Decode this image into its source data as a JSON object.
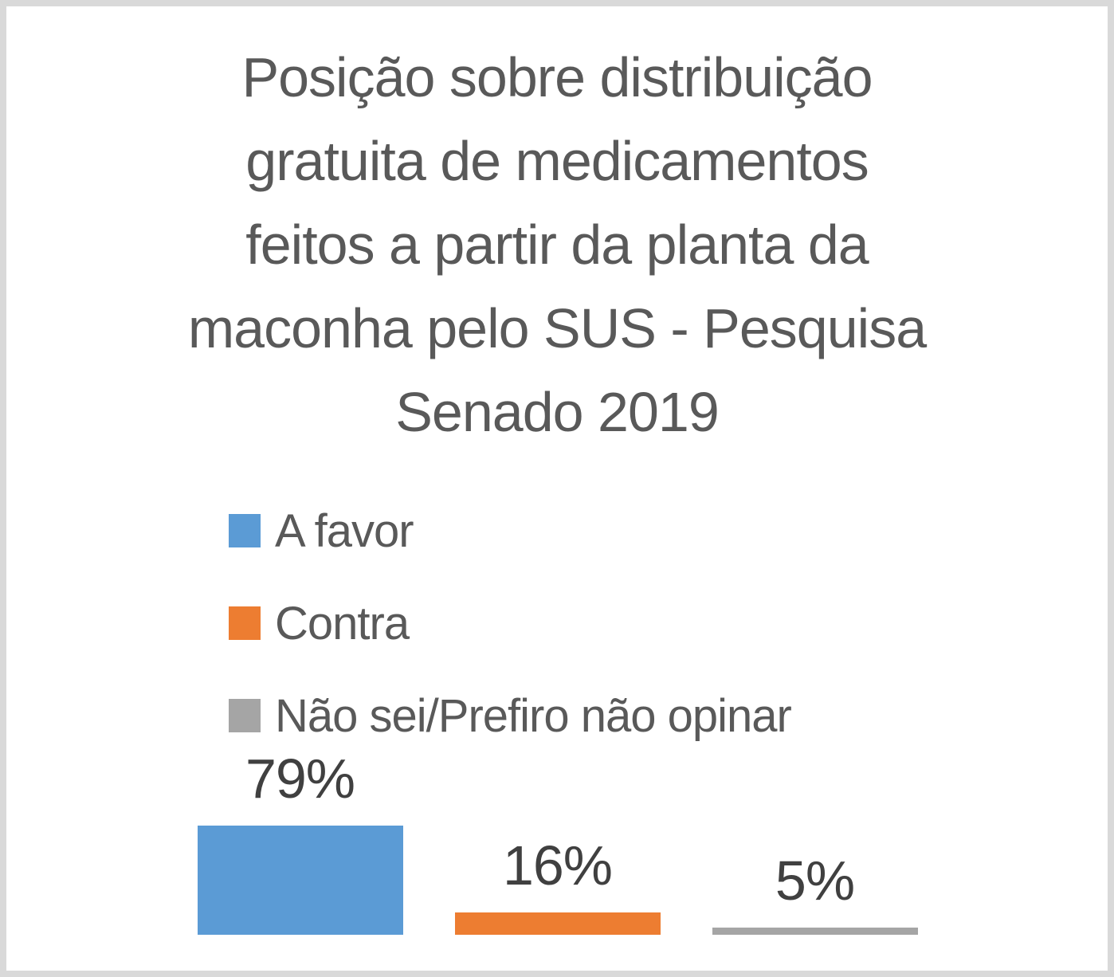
{
  "frame": {
    "background": "#FFFFFF",
    "border_color": "#D9D9D9"
  },
  "chart_data": {
    "type": "bar",
    "title": "Posição sobre distribuição gratuita de medicamentos feitos a partir da planta da maconha pelo SUS - Pesquisa Senado 2019",
    "title_lines": [
      "Posição sobre distribuição",
      "gratuita de medicamentos",
      "feitos a partir da planta da",
      "maconha pelo SUS - Pesquisa",
      "Senado 2019"
    ],
    "categories": [
      "A favor",
      "Contra",
      "Não sei/Prefiro não opinar"
    ],
    "values": [
      79,
      16,
      5
    ],
    "value_labels": [
      "79%",
      "16%",
      "5%"
    ],
    "colors": [
      "#5B9BD5",
      "#ED7D31",
      "#A5A5A5"
    ],
    "unit": "%",
    "ylim": [
      0,
      79
    ],
    "grid": false,
    "axes_visible": false,
    "data_labels": "outside-end",
    "legend_position": "middle-left-vertical",
    "title_color": "#595959",
    "label_color": "#404040"
  },
  "legend": {
    "items": [
      {
        "label": "A favor",
        "color": "#5B9BD5"
      },
      {
        "label": "Contra",
        "color": "#ED7D31"
      },
      {
        "label": "Não sei/Prefiro não opinar",
        "color": "#A5A5A5"
      }
    ]
  }
}
